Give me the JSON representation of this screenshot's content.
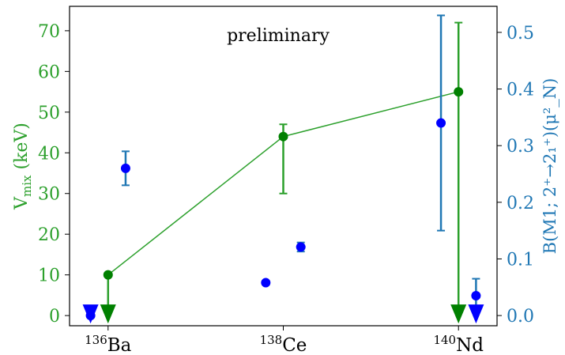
{
  "chart_data": {
    "type": "scatter",
    "annotation": "preliminary",
    "categories": [
      {
        "sup": "136",
        "name": "Ba",
        "x": 0
      },
      {
        "sup": "138",
        "name": "Ce",
        "x": 1
      },
      {
        "sup": "140",
        "name": "Nd",
        "x": 2
      }
    ],
    "xlim": [
      -0.22,
      2.22
    ],
    "y_left": {
      "label_main": "V",
      "label_sub": "mix",
      "label_unit": "(keV)",
      "lim": [
        -2.5,
        76
      ],
      "ticks": [
        0,
        10,
        20,
        30,
        40,
        50,
        60,
        70
      ],
      "color": "#2ca02c"
    },
    "y_right": {
      "label": "B(M1; 2⁺→2₁⁺)(μ²_N)",
      "lim": [
        -0.018,
        0.546
      ],
      "ticks": [
        0.0,
        0.1,
        0.2,
        0.3,
        0.4,
        0.5
      ],
      "tick_labels": [
        "0.0",
        "0.1",
        "0.2",
        "0.3",
        "0.4",
        "0.5"
      ],
      "color": "#1f77b4"
    },
    "series": [
      {
        "axis": "left",
        "color": "#2ca02c",
        "point_color": "#008000",
        "connected": true,
        "points": [
          {
            "x": 0,
            "y": 10,
            "err_low": 10,
            "err_high": 0,
            "upper_limit": true
          },
          {
            "x": 1,
            "y": 44,
            "err_low": 14,
            "err_high": 3,
            "upper_limit": false
          },
          {
            "x": 2,
            "y": 55,
            "err_low": 55,
            "err_high": 17,
            "upper_limit": true
          }
        ]
      },
      {
        "axis": "right",
        "color": "#1f77b4",
        "point_color": "#0000ff",
        "connected": false,
        "points": [
          {
            "x": -0.1,
            "y": 0.0,
            "err_low": 0.0,
            "err_high": 0.0,
            "upper_limit": true
          },
          {
            "x": 0.1,
            "y": 0.26,
            "err_low": 0.03,
            "err_high": 0.03,
            "upper_limit": false
          },
          {
            "x": 0.9,
            "y": 0.058,
            "err_low": 0.003,
            "err_high": 0.003,
            "upper_limit": false
          },
          {
            "x": 1.1,
            "y": 0.121,
            "err_low": 0.008,
            "err_high": 0.008,
            "upper_limit": false
          },
          {
            "x": 1.9,
            "y": 0.34,
            "err_low": 0.19,
            "err_high": 0.19,
            "upper_limit": false
          },
          {
            "x": 2.1,
            "y": 0.035,
            "err_low": 0.035,
            "err_high": 0.03,
            "upper_limit": true
          }
        ]
      }
    ]
  }
}
